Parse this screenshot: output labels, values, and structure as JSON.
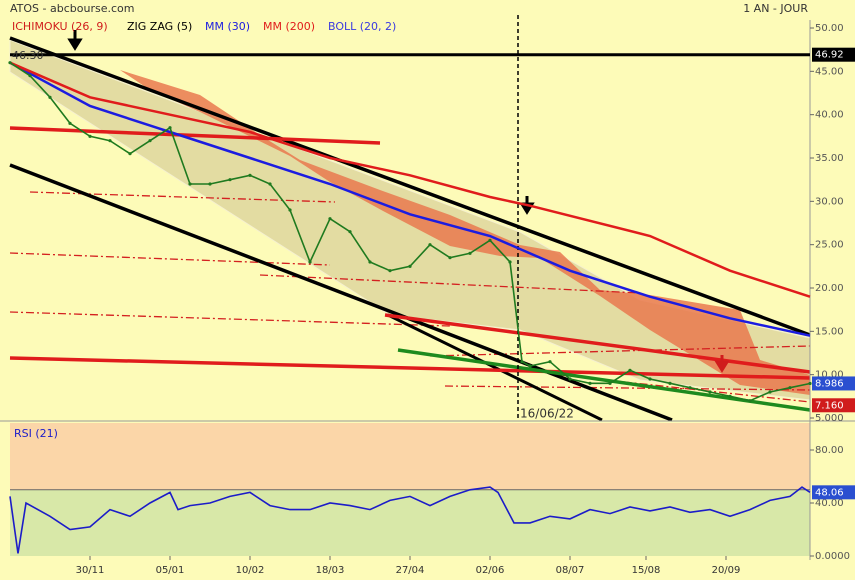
{
  "chart_data": [
    {
      "type": "line",
      "title": "ATOS - abcbourse.com",
      "period": "1 AN - JOUR",
      "x": [
        0,
        5,
        10,
        15,
        20,
        25,
        30,
        35,
        40,
        45,
        50,
        55,
        60,
        65,
        70,
        75,
        80,
        85,
        90,
        95,
        100,
        105,
        110,
        115,
        120,
        125,
        128,
        130,
        135,
        140,
        145,
        150,
        155,
        160,
        165,
        170,
        175,
        180,
        185,
        190,
        195,
        200
      ],
      "values": [
        46,
        44.5,
        42,
        39,
        37.5,
        37,
        35.5,
        37,
        38.5,
        32,
        32,
        32.5,
        33,
        32,
        29,
        23,
        28,
        26.5,
        23,
        22,
        22.5,
        25,
        23.5,
        24,
        25.5,
        23,
        11.5,
        11,
        11.5,
        9.5,
        9,
        9,
        10.5,
        9.5,
        9,
        8.5,
        8,
        7.5,
        7,
        8,
        8.5,
        8.986
      ],
      "color": "#1f7a1f",
      "series": [
        {
          "name": "MM (30)",
          "color": "#1c1ce0",
          "x": [
            0,
            20,
            40,
            60,
            80,
            100,
            120,
            140,
            160,
            180,
            200
          ],
          "values": [
            46,
            41,
            38,
            35,
            32,
            28.5,
            26,
            22,
            19,
            16.5,
            14.5
          ]
        },
        {
          "name": "MM (200)",
          "color": "#e01c1c",
          "x": [
            0,
            20,
            40,
            60,
            80,
            100,
            120,
            130,
            160,
            180,
            200
          ],
          "values": [
            46,
            42,
            40,
            38,
            35,
            33,
            30.5,
            29.5,
            26,
            22,
            19
          ]
        }
      ],
      "overlays": [
        {
          "name": "ICHIMOKU (26, 9)",
          "color": "#d01c1c"
        },
        {
          "name": "ZIG ZAG (5)",
          "color": "#000000"
        },
        {
          "name": "BOLL (20, 2)",
          "color": "#3a3ae0"
        }
      ],
      "level": 46.92,
      "high_label": {
        "value": 46.3,
        "label": "46.30"
      },
      "last_value": 8.986,
      "support": {
        "value": 7.16,
        "label": "7.160"
      },
      "event_x": 127,
      "event_label": "16/06/22",
      "xlim": [
        0,
        200
      ],
      "ylim": [
        5,
        50
      ],
      "yticks": [
        {
          "value": 50,
          "label": "50.00"
        },
        {
          "value": 45,
          "label": "45.00"
        },
        {
          "value": 40,
          "label": "40.00"
        },
        {
          "value": 35,
          "label": "35.00"
        },
        {
          "value": 30,
          "label": "30.00"
        },
        {
          "value": 25,
          "label": "25.00"
        },
        {
          "value": 20,
          "label": "20.00"
        },
        {
          "value": 15,
          "label": "15.00"
        },
        {
          "value": 10,
          "label": "10.00"
        },
        {
          "value": 5,
          "label": "5.000"
        }
      ],
      "xticks": [
        {
          "value": 20,
          "label": "30/11"
        },
        {
          "value": 40,
          "label": "05/01"
        },
        {
          "value": 60,
          "label": "10/02"
        },
        {
          "value": 80,
          "label": "18/03"
        },
        {
          "value": 100,
          "label": "27/04"
        },
        {
          "value": 120,
          "label": "02/06"
        },
        {
          "value": 140,
          "label": "08/07"
        },
        {
          "value": 159,
          "label": "15/08"
        },
        {
          "value": 179,
          "label": "20/09"
        }
      ]
    },
    {
      "type": "line",
      "title": "RSI (21)",
      "color": "#1c1cc8",
      "x": [
        0,
        2,
        4,
        10,
        15,
        20,
        25,
        30,
        35,
        40,
        42,
        45,
        50,
        55,
        60,
        65,
        70,
        75,
        80,
        85,
        90,
        95,
        100,
        105,
        110,
        115,
        120,
        122,
        126,
        130,
        135,
        140,
        145,
        150,
        155,
        160,
        165,
        170,
        175,
        180,
        185,
        190,
        195,
        198,
        200
      ],
      "values": [
        45,
        2,
        40,
        30,
        20,
        22,
        35,
        30,
        40,
        48,
        35,
        38,
        40,
        45,
        48,
        38,
        35,
        35,
        40,
        38,
        35,
        42,
        45,
        38,
        45,
        50,
        52,
        48,
        25,
        25,
        30,
        28,
        35,
        32,
        37,
        34,
        37,
        33,
        35,
        30,
        35,
        42,
        45,
        52,
        48.06
      ],
      "midline": 50,
      "xlim": [
        0,
        200
      ],
      "ylim": [
        0,
        100
      ],
      "yticks": [
        {
          "value": 80,
          "label": "80.00"
        },
        {
          "value": 40,
          "label": "40.00"
        },
        {
          "value": 0,
          "label": "0.0000"
        }
      ]
    }
  ]
}
